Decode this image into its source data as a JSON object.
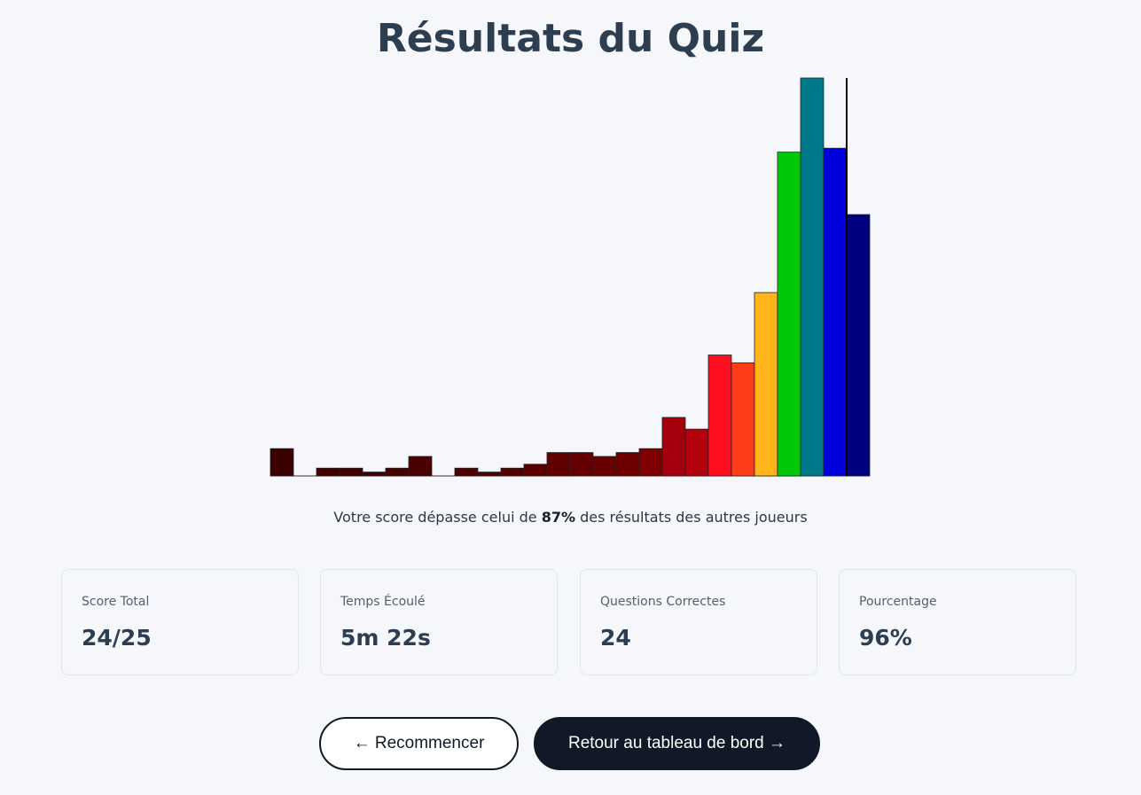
{
  "page": {
    "title": "Résultats du Quiz"
  },
  "percentile": {
    "prefix": "Votre score dépasse celui de ",
    "value": "87%",
    "suffix": " des résultats des autres joueurs"
  },
  "stats": [
    {
      "label": "Score Total",
      "value": "24/25"
    },
    {
      "label": "Temps Écoulé",
      "value": "5m 22s"
    },
    {
      "label": "Questions Correctes",
      "value": "24"
    },
    {
      "label": "Pourcentage",
      "value": "96%"
    }
  ],
  "buttons": {
    "restart": "← Recommencer",
    "dashboard": "Retour au tableau de bord →"
  },
  "chart_data": {
    "type": "bar",
    "title": "",
    "xlabel": "",
    "ylabel": "",
    "bins": 26,
    "values": [
      7,
      0,
      2,
      2,
      1,
      2,
      5,
      0,
      2,
      1,
      2,
      3,
      6,
      6,
      5,
      6,
      7,
      15,
      12,
      31,
      29,
      47,
      83,
      102,
      84,
      67
    ],
    "ylim": [
      0,
      102
    ],
    "colors": [
      "#3b0000",
      "#3b0000",
      "#420000",
      "#420000",
      "#440000",
      "#480000",
      "#4a0000",
      "#4a0000",
      "#4f0000",
      "#520000",
      "#550000",
      "#5a0000",
      "#600000",
      "#650000",
      "#690000",
      "#700000",
      "#7f0000",
      "#a4000e",
      "#b5000e",
      "#ff1020",
      "#ff3c1a",
      "#ffb41a",
      "#00c80a",
      "#007a8a",
      "#0000dc",
      "#000080"
    ],
    "player_marker_bin": 25,
    "grid": false
  }
}
